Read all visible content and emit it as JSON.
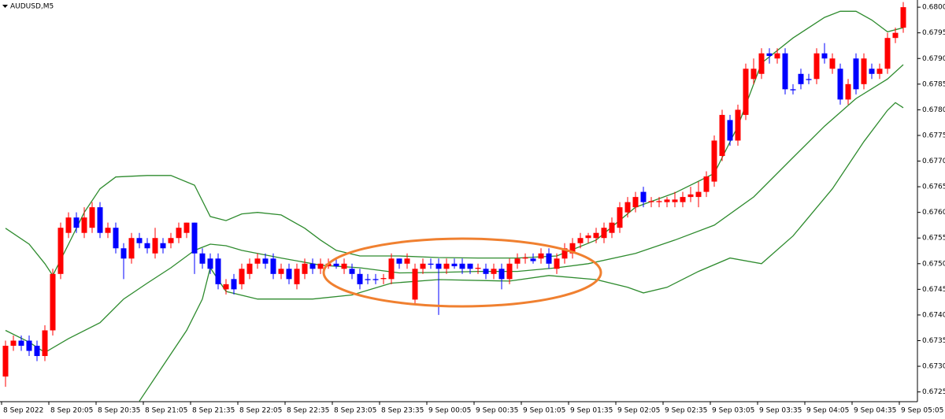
{
  "chart_data": {
    "type": "candlestick",
    "title": "AUDUSD,M5",
    "up_color": "#ff0000",
    "down_color": "#0000ff",
    "grid": false,
    "xlim": [
      -0.7,
      115.8
    ],
    "ylim": [
      0.67231,
      0.68014
    ],
    "yticks": [
      {
        "value": 0.68,
        "label": "0.68000"
      },
      {
        "value": 0.6795,
        "label": "0.67950"
      },
      {
        "value": 0.679,
        "label": "0.67900"
      },
      {
        "value": 0.6785,
        "label": "0.67850"
      },
      {
        "value": 0.678,
        "label": "0.67800"
      },
      {
        "value": 0.6775,
        "label": "0.67750"
      },
      {
        "value": 0.677,
        "label": "0.67700"
      },
      {
        "value": 0.6765,
        "label": "0.67650"
      },
      {
        "value": 0.676,
        "label": "0.67600"
      },
      {
        "value": 0.6755,
        "label": "0.67550"
      },
      {
        "value": 0.675,
        "label": "0.67500"
      },
      {
        "value": 0.6745,
        "label": "0.67450"
      },
      {
        "value": 0.674,
        "label": "0.67400"
      },
      {
        "value": 0.6735,
        "label": "0.67350"
      },
      {
        "value": 0.673,
        "label": "0.67300"
      },
      {
        "value": 0.6725,
        "label": "0.67250"
      }
    ],
    "xticks": [
      {
        "value": 0,
        "label": "8 Sep 2022"
      },
      {
        "value": 6,
        "label": "8 Sep 20:05"
      },
      {
        "value": 12,
        "label": "8 Sep 20:35"
      },
      {
        "value": 18,
        "label": "8 Sep 21:05"
      },
      {
        "value": 24,
        "label": "8 Sep 21:35"
      },
      {
        "value": 30,
        "label": "8 Sep 22:05"
      },
      {
        "value": 36,
        "label": "8 Sep 22:35"
      },
      {
        "value": 42,
        "label": "8 Sep 23:05"
      },
      {
        "value": 48,
        "label": "8 Sep 23:35"
      },
      {
        "value": 54,
        "label": "9 Sep 00:05"
      },
      {
        "value": 60,
        "label": "9 Sep 00:35"
      },
      {
        "value": 66,
        "label": "9 Sep 01:05"
      },
      {
        "value": 72,
        "label": "9 Sep 01:35"
      },
      {
        "value": 78,
        "label": "9 Sep 02:05"
      },
      {
        "value": 84,
        "label": "9 Sep 02:35"
      },
      {
        "value": 90,
        "label": "9 Sep 03:05"
      },
      {
        "value": 96,
        "label": "9 Sep 03:35"
      },
      {
        "value": 102,
        "label": "9 Sep 04:05"
      },
      {
        "value": 108,
        "label": "9 Sep 04:35"
      },
      {
        "value": 114,
        "label": "9 Sep 05:05"
      }
    ],
    "open": [
      0.6728,
      0.6734,
      0.6735,
      0.6735,
      0.6734,
      0.6732,
      0.6737,
      0.6748,
      0.6756,
      0.6759,
      0.6756,
      0.6757,
      0.6761,
      0.6756,
      0.6757,
      0.6753,
      0.6751,
      0.6755,
      0.6754,
      0.6752,
      0.6754,
      0.6754,
      0.6755,
      0.6756,
      0.6758,
      0.6752,
      0.6751,
      0.6751,
      0.6745,
      0.6747,
      0.6746,
      0.6748,
      0.675,
      0.6751,
      0.6751,
      0.6748,
      0.6749,
      0.6746,
      0.6748,
      0.675,
      0.6749,
      0.67495,
      0.675,
      0.6749,
      0.6749,
      0.6748,
      0.6747,
      0.6747,
      0.6747,
      0.6747,
      0.6751,
      0.675,
      0.6743,
      0.6749,
      0.675,
      0.675,
      0.6749,
      0.675,
      0.675,
      0.675,
      0.6749,
      0.6749,
      0.6748,
      0.6749,
      0.6747,
      0.675,
      0.6751,
      0.6751,
      0.6751,
      0.6752,
      0.6749,
      0.6751,
      0.6752,
      0.6754,
      0.6755,
      0.6755,
      0.6755,
      0.6756,
      0.6757,
      0.676,
      0.6761,
      0.6764,
      0.6762,
      0.6762,
      0.6762,
      0.6762,
      0.6762,
      0.6763,
      0.6763,
      0.6764,
      0.6766,
      0.6771,
      0.6778,
      0.6774,
      0.6779,
      0.6786,
      0.6787,
      0.6791,
      0.679,
      0.6791,
      0.6784,
      0.6787,
      0.6786,
      0.6786,
      0.6791,
      0.6788,
      0.6788,
      0.6782,
      0.679,
      0.6785,
      0.6788,
      0.6787,
      0.6788,
      0.6794,
      0.6796
    ],
    "high": [
      0.6735,
      0.6736,
      0.6736,
      0.6736,
      0.6735,
      0.6738,
      0.6749,
      0.6758,
      0.676,
      0.676,
      0.6761,
      0.6762,
      0.6762,
      0.6758,
      0.6758,
      0.6754,
      0.6756,
      0.6756,
      0.6755,
      0.6757,
      0.6755,
      0.6756,
      0.6758,
      0.6758,
      0.6758,
      0.6753,
      0.6752,
      0.6752,
      0.6747,
      0.6748,
      0.675,
      0.6751,
      0.6752,
      0.6752,
      0.6752,
      0.675,
      0.675,
      0.675,
      0.6751,
      0.6751,
      0.6751,
      0.6751,
      0.6751,
      0.6751,
      0.675,
      0.6749,
      0.6748,
      0.6748,
      0.6748,
      0.6752,
      0.6751,
      0.6752,
      0.675,
      0.6751,
      0.6751,
      0.6751,
      0.6751,
      0.6751,
      0.6751,
      0.675,
      0.675,
      0.675,
      0.675,
      0.675,
      0.6751,
      0.6752,
      0.6752,
      0.6752,
      0.6753,
      0.6753,
      0.6752,
      0.6754,
      0.6755,
      0.6756,
      0.6756,
      0.6757,
      0.6758,
      0.6759,
      0.6762,
      0.6763,
      0.6764,
      0.6765,
      0.6763,
      0.6763,
      0.6763,
      0.6764,
      0.6764,
      0.6765,
      0.6766,
      0.6768,
      0.6775,
      0.678,
      0.6779,
      0.6781,
      0.6789,
      0.679,
      0.6792,
      0.6792,
      0.6792,
      0.6792,
      0.6785,
      0.6788,
      0.6787,
      0.6792,
      0.6793,
      0.6791,
      0.6789,
      0.6786,
      0.6791,
      0.6791,
      0.6789,
      0.6789,
      0.6795,
      0.6796,
      0.6801
    ],
    "low": [
      0.6726,
      0.6733,
      0.6733,
      0.6732,
      0.6731,
      0.6731,
      0.6736,
      0.6747,
      0.6755,
      0.6756,
      0.6755,
      0.6756,
      0.6755,
      0.6755,
      0.6752,
      0.6747,
      0.675,
      0.6753,
      0.6752,
      0.6751,
      0.6752,
      0.6753,
      0.6754,
      0.6755,
      0.6748,
      0.6749,
      0.6748,
      0.6745,
      0.6744,
      0.6744,
      0.6745,
      0.6747,
      0.6749,
      0.6749,
      0.6747,
      0.6747,
      0.6746,
      0.6745,
      0.6747,
      0.6748,
      0.6748,
      0.6749,
      0.6749,
      0.6748,
      0.6747,
      0.6745,
      0.6746,
      0.6746,
      0.6746,
      0.6746,
      0.6749,
      0.6749,
      0.6742,
      0.6748,
      0.6749,
      0.674,
      0.6748,
      0.6749,
      0.6748,
      0.6748,
      0.6748,
      0.6747,
      0.6747,
      0.6745,
      0.6746,
      0.6749,
      0.675,
      0.675,
      0.675,
      0.6749,
      0.6748,
      0.675,
      0.6751,
      0.6753,
      0.6754,
      0.6754,
      0.6754,
      0.6755,
      0.6756,
      0.6759,
      0.676,
      0.6761,
      0.6761,
      0.6761,
      0.6761,
      0.6761,
      0.6761,
      0.6762,
      0.6761,
      0.6763,
      0.6765,
      0.677,
      0.6773,
      0.6773,
      0.6778,
      0.6785,
      0.6786,
      0.6789,
      0.6789,
      0.6783,
      0.6783,
      0.6784,
      0.6785,
      0.6785,
      0.6789,
      0.6787,
      0.6781,
      0.6781,
      0.6783,
      0.6784,
      0.6786,
      0.6786,
      0.6787,
      0.6793,
      0.6795
    ],
    "close": [
      0.6734,
      0.6735,
      0.6734,
      0.6733,
      0.6732,
      0.6737,
      0.6748,
      0.6757,
      0.6759,
      0.6757,
      0.6759,
      0.6761,
      0.6756,
      0.6757,
      0.6753,
      0.6751,
      0.6755,
      0.6754,
      0.6753,
      0.6755,
      0.6753,
      0.6755,
      0.6757,
      0.6758,
      0.6752,
      0.675,
      0.6749,
      0.6746,
      0.6746,
      0.6745,
      0.6749,
      0.675,
      0.6751,
      0.675,
      0.6748,
      0.6749,
      0.6747,
      0.6749,
      0.675,
      0.6749,
      0.675,
      0.675,
      0.67495,
      0.675,
      0.6748,
      0.6746,
      0.67468,
      0.67468,
      0.67472,
      0.6751,
      0.675,
      0.6751,
      0.6749,
      0.675,
      0.67498,
      0.6749,
      0.675,
      0.67495,
      0.6749,
      0.6749,
      0.67492,
      0.6748,
      0.6749,
      0.6747,
      0.675,
      0.6751,
      0.67512,
      0.67505,
      0.6752,
      0.675,
      0.6751,
      0.6753,
      0.6754,
      0.6755,
      0.67555,
      0.6756,
      0.6757,
      0.6758,
      0.6761,
      0.6762,
      0.6763,
      0.6762,
      0.67622,
      0.67622,
      0.67625,
      0.67625,
      0.6763,
      0.67635,
      0.6764,
      0.6767,
      0.6774,
      0.6779,
      0.6774,
      0.678,
      0.6788,
      0.6788,
      0.6791,
      0.67905,
      0.6791,
      0.6784,
      0.67838,
      0.6785,
      0.67858,
      0.6791,
      0.679,
      0.679,
      0.6782,
      0.6785,
      0.6784,
      0.679,
      0.6787,
      0.6788,
      0.6794,
      0.6795,
      0.68
    ],
    "bands": [
      {
        "color": "#2e8b2e",
        "x": [
          0,
          3,
          5,
          6,
          8,
          10,
          12,
          14,
          18,
          21,
          24,
          26,
          28,
          30,
          32,
          35,
          38,
          40,
          42,
          45,
          50,
          55,
          60,
          65,
          70,
          75,
          80,
          85,
          90,
          93,
          96,
          100,
          104,
          106,
          108,
          110,
          112,
          114
        ],
        "values": [
          0.67569,
          0.67538,
          0.675,
          0.67477,
          0.67538,
          0.676,
          0.67646,
          0.67669,
          0.67672,
          0.67672,
          0.67653,
          0.67592,
          0.67584,
          0.67597,
          0.676,
          0.67595,
          0.67569,
          0.67546,
          0.67526,
          0.67515,
          0.67515,
          0.67512,
          0.67511,
          0.67511,
          0.67515,
          0.67546,
          0.6761,
          0.67638,
          0.67676,
          0.67768,
          0.67891,
          0.6794,
          0.6798,
          0.67992,
          0.67992,
          0.67975,
          0.67952,
          0.6796
        ]
      },
      {
        "color": "#2e8b2e",
        "x": [
          0,
          3,
          5,
          8,
          12,
          15,
          18,
          21,
          24,
          26,
          28,
          30,
          35,
          40,
          45,
          50,
          55,
          60,
          65,
          70,
          74,
          80,
          85,
          90,
          95,
          100,
          104,
          108,
          112,
          114
        ],
        "values": [
          0.6737,
          0.67347,
          0.67327,
          0.67354,
          0.67385,
          0.67431,
          0.67462,
          0.67492,
          0.67526,
          0.67538,
          0.67535,
          0.67526,
          0.67511,
          0.67497,
          0.67492,
          0.67482,
          0.67483,
          0.67485,
          0.67485,
          0.67492,
          0.675,
          0.6752,
          0.67546,
          0.67575,
          0.6763,
          0.67707,
          0.67768,
          0.67822,
          0.6786,
          0.67888
        ]
      },
      {
        "color": "#2e8b2e",
        "x": [
          17,
          20,
          23,
          25,
          26,
          28,
          32,
          39,
          44,
          49,
          55,
          64,
          69,
          75,
          79,
          81,
          84,
          88,
          92,
          96,
          100,
          105,
          109,
          112,
          113,
          114
        ],
        "values": [
          0.67232,
          0.67301,
          0.6737,
          0.67431,
          0.67492,
          0.67446,
          0.67431,
          0.67431,
          0.67439,
          0.67462,
          0.67469,
          0.67466,
          0.67477,
          0.67469,
          0.67454,
          0.67443,
          0.67454,
          0.67485,
          0.67511,
          0.675,
          0.67554,
          0.67646,
          0.67738,
          0.67799,
          0.67814,
          0.67804
        ]
      }
    ]
  }
}
